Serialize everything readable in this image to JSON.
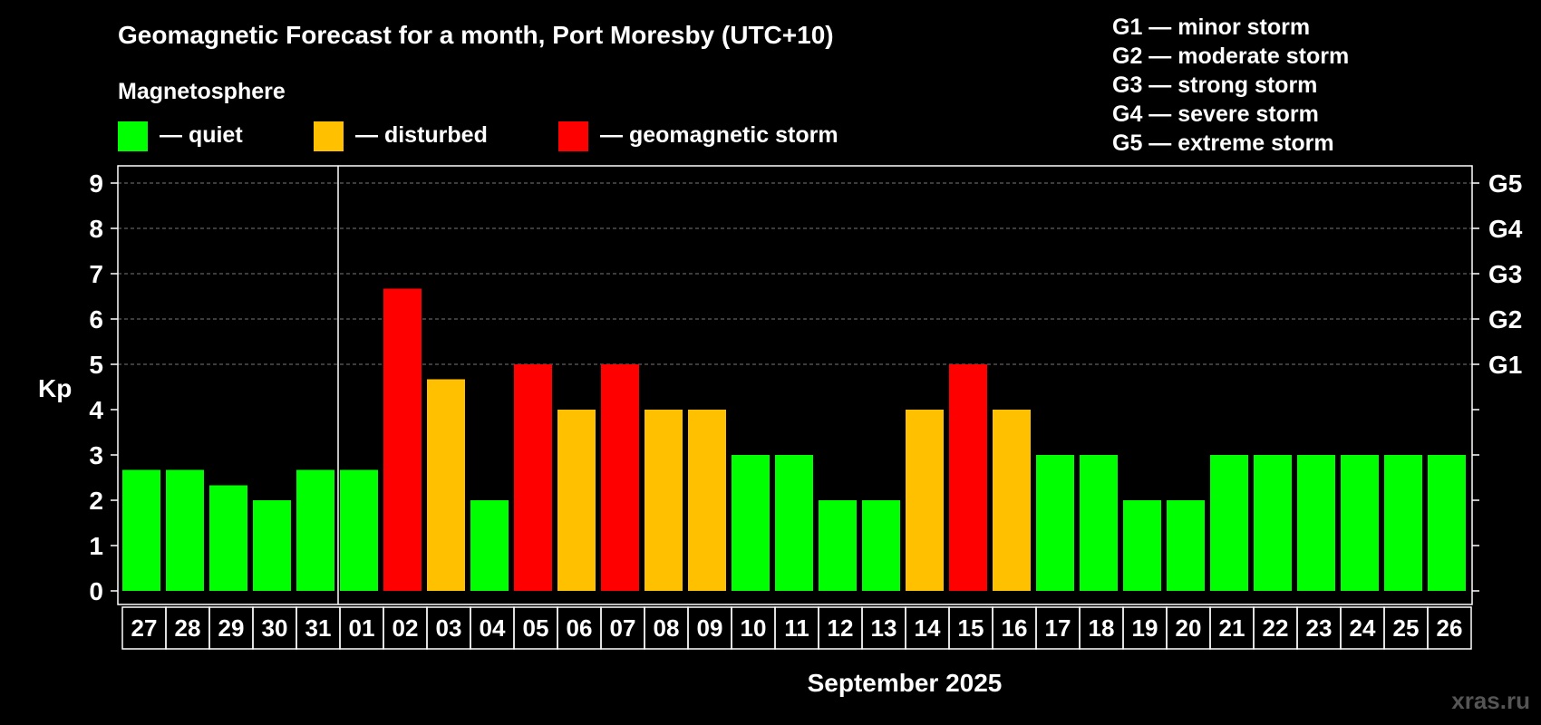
{
  "chart_data": {
    "type": "bar",
    "title": "Geomagnetic Forecast for a month, Port Moresby (UTC+10)",
    "legend_title": "Magnetosphere",
    "legend": [
      {
        "key": "quiet",
        "label": "— quiet",
        "color": "#00ff00"
      },
      {
        "key": "disturbed",
        "label": "— disturbed",
        "color": "#ffc000"
      },
      {
        "key": "storm",
        "label": "— geomagnetic storm",
        "color": "#ff0000"
      }
    ],
    "storm_scale": [
      {
        "level": "G1",
        "label": "G1 — minor storm"
      },
      {
        "level": "G2",
        "label": "G2 — moderate storm"
      },
      {
        "level": "G3",
        "label": "G3 — strong storm"
      },
      {
        "level": "G4",
        "label": "G4 — severe storm"
      },
      {
        "level": "G5",
        "label": "G5 — extreme storm"
      }
    ],
    "ylabel": "Kp",
    "ylim": [
      0,
      9
    ],
    "yticks": [
      "0",
      "1",
      "2",
      "3",
      "4",
      "5",
      "6",
      "7",
      "8",
      "9"
    ],
    "right_ticks": [
      {
        "value": 5,
        "label": "G1"
      },
      {
        "value": 6,
        "label": "G2"
      },
      {
        "value": 7,
        "label": "G3"
      },
      {
        "value": 8,
        "label": "G4"
      },
      {
        "value": 9,
        "label": "G5"
      }
    ],
    "xlabel": "September 2025",
    "previous_month_days": 5,
    "categories": [
      "27",
      "28",
      "29",
      "30",
      "31",
      "01",
      "02",
      "03",
      "04",
      "05",
      "06",
      "07",
      "08",
      "09",
      "10",
      "11",
      "12",
      "13",
      "14",
      "15",
      "16",
      "17",
      "18",
      "19",
      "20",
      "21",
      "22",
      "23",
      "24",
      "25",
      "26"
    ],
    "values": [
      2.67,
      2.67,
      2.33,
      2,
      2.67,
      2.67,
      6.67,
      4.67,
      2,
      5,
      4,
      5,
      4,
      4,
      3,
      3,
      2,
      2,
      4,
      5,
      4,
      3,
      3,
      2,
      2,
      3,
      3,
      3,
      3,
      3,
      3
    ],
    "status": [
      "quiet",
      "quiet",
      "quiet",
      "quiet",
      "quiet",
      "quiet",
      "storm",
      "disturbed",
      "quiet",
      "storm",
      "disturbed",
      "storm",
      "disturbed",
      "disturbed",
      "quiet",
      "quiet",
      "quiet",
      "quiet",
      "disturbed",
      "storm",
      "disturbed",
      "quiet",
      "quiet",
      "quiet",
      "quiet",
      "quiet",
      "quiet",
      "quiet",
      "quiet",
      "quiet",
      "quiet"
    ]
  },
  "watermark": "xras.ru"
}
